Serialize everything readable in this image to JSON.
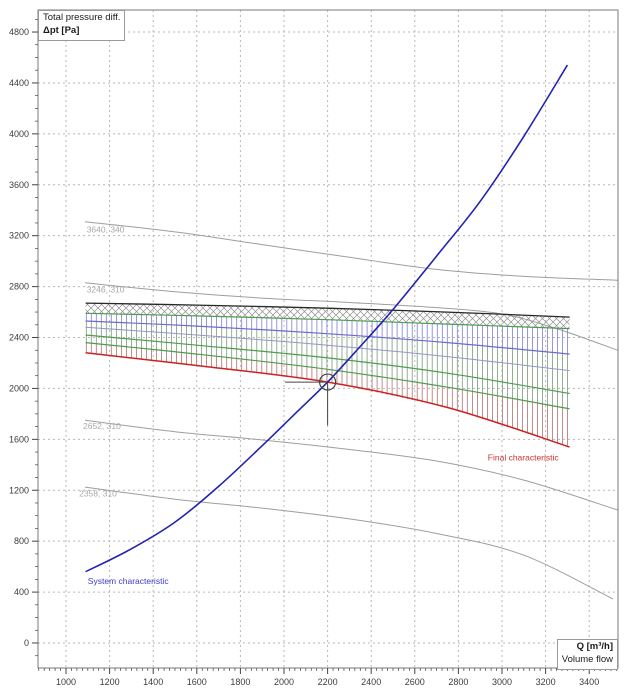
{
  "chart_data": {
    "type": "line",
    "title": "Total pressure diff.",
    "ylabel": "Δpt [Pa]",
    "xlabel": "Q [m³/h]",
    "xlabel2": "Volume flow",
    "x_axis": {
      "ticks": [
        1000,
        1200,
        1400,
        1600,
        1800,
        2000,
        2200,
        2400,
        2600,
        2800,
        3000,
        3200,
        3400
      ],
      "minor_step": 25,
      "minor_range": [
        875,
        3525
      ]
    },
    "y_axis": {
      "ticks": [
        0,
        400,
        800,
        1200,
        1600,
        2000,
        2400,
        2800,
        3200,
        3600,
        4000,
        4400,
        4800
      ],
      "minor_step": 100,
      "minor_range": [
        -100,
        4900
      ]
    },
    "grid": {
      "color": "#b7b7b7",
      "dash": "2 3"
    },
    "frame_color": "#7a7a7a",
    "tick_color": "#444444",
    "tick_label_color": "#3c3c3c",
    "series": [
      {
        "name": "speed-curve-3640-340",
        "label": "3640, 340",
        "color": "#9e9e9e",
        "width": 1,
        "points": [
          [
            1087,
            3310
          ],
          [
            1500,
            3230
          ],
          [
            1900,
            3130
          ],
          [
            2300,
            3030
          ],
          [
            2700,
            2935
          ],
          [
            3100,
            2880
          ],
          [
            3530,
            2850
          ]
        ]
      },
      {
        "name": "speed-curve-3246-310",
        "label": "3246, 310",
        "color": "#9e9e9e",
        "width": 1,
        "points": [
          [
            1087,
            2830
          ],
          [
            1500,
            2760
          ],
          [
            1900,
            2710
          ],
          [
            2300,
            2675
          ],
          [
            2700,
            2635
          ],
          [
            3000,
            2585
          ],
          [
            3250,
            2470
          ],
          [
            3530,
            2300
          ]
        ]
      },
      {
        "name": "speed-curve-2652-310",
        "label": "2652, 310",
        "color": "#9e9e9e",
        "width": 1,
        "points": [
          [
            1087,
            1750
          ],
          [
            1500,
            1660
          ],
          [
            1900,
            1595
          ],
          [
            2300,
            1520
          ],
          [
            2700,
            1430
          ],
          [
            3100,
            1280
          ],
          [
            3530,
            1045
          ]
        ]
      },
      {
        "name": "speed-curve-2358-310",
        "label": "2358, 310",
        "color": "#9e9e9e",
        "width": 1,
        "points": [
          [
            1087,
            1225
          ],
          [
            1500,
            1130
          ],
          [
            1900,
            1060
          ],
          [
            2300,
            975
          ],
          [
            2700,
            860
          ],
          [
            3100,
            690
          ],
          [
            3510,
            345
          ]
        ]
      },
      {
        "name": "band-top",
        "color": "#282828",
        "width": 1.3,
        "points": [
          [
            1090,
            2670
          ],
          [
            1600,
            2655
          ],
          [
            2200,
            2630
          ],
          [
            2750,
            2600
          ],
          [
            3310,
            2560
          ]
        ]
      },
      {
        "name": "band-green-1",
        "color": "#4e9b4e",
        "width": 1.2,
        "points": [
          [
            1090,
            2590
          ],
          [
            1600,
            2570
          ],
          [
            2200,
            2540
          ],
          [
            2750,
            2505
          ],
          [
            3310,
            2470
          ]
        ]
      },
      {
        "name": "band-blue-1",
        "color": "#6b6bcf",
        "width": 1.2,
        "points": [
          [
            1090,
            2530
          ],
          [
            1600,
            2490
          ],
          [
            2200,
            2430
          ],
          [
            2750,
            2360
          ],
          [
            3310,
            2270
          ]
        ]
      },
      {
        "name": "band-blue-2",
        "color": "#9595c8",
        "width": 1,
        "points": [
          [
            1090,
            2480
          ],
          [
            1600,
            2420
          ],
          [
            2200,
            2340
          ],
          [
            2750,
            2250
          ],
          [
            3310,
            2140
          ]
        ]
      },
      {
        "name": "band-green-2",
        "color": "#4e9b4e",
        "width": 1.2,
        "points": [
          [
            1090,
            2420
          ],
          [
            1600,
            2340
          ],
          [
            2200,
            2240
          ],
          [
            2750,
            2120
          ],
          [
            3310,
            1960
          ]
        ]
      },
      {
        "name": "band-green-3",
        "color": "#4e9b4e",
        "width": 1.2,
        "points": [
          [
            1090,
            2360
          ],
          [
            1600,
            2270
          ],
          [
            2200,
            2150
          ],
          [
            2750,
            2010
          ],
          [
            3310,
            1840
          ]
        ]
      },
      {
        "name": "final-characteristic",
        "label": "Final characteristic",
        "color": "#cc2222",
        "width": 1.5,
        "points": [
          [
            1090,
            2280
          ],
          [
            1600,
            2180
          ],
          [
            2200,
            2050
          ],
          [
            2750,
            1850
          ],
          [
            3310,
            1540
          ]
        ]
      },
      {
        "name": "system-characteristic",
        "label": "System characteristic",
        "color": "#2323b0",
        "width": 1.6,
        "points": [
          [
            1090,
            560
          ],
          [
            1300,
            740
          ],
          [
            1500,
            950
          ],
          [
            1700,
            1230
          ],
          [
            1900,
            1550
          ],
          [
            2050,
            1800
          ],
          [
            2200,
            2050
          ],
          [
            2350,
            2330
          ],
          [
            2500,
            2620
          ],
          [
            2700,
            3040
          ],
          [
            2900,
            3470
          ],
          [
            3100,
            3980
          ],
          [
            3300,
            4540
          ]
        ]
      }
    ],
    "hatch": {
      "cross": {
        "between": [
          "band-top",
          "band-green-1"
        ],
        "color": "#8f8f8f"
      },
      "vertical": {
        "step_q": 23,
        "q_range": [
          1093,
          3308
        ],
        "bands": [
          {
            "top": "band-green-1",
            "bottom": "band-blue-1",
            "color": "#7d7dd8"
          },
          {
            "top": "band-blue-1",
            "bottom": "band-green-3",
            "color": "#7a9a7a"
          },
          {
            "top": "band-green-3",
            "bottom": "final-characteristic",
            "color": "#b07070"
          }
        ]
      }
    },
    "operating_point": {
      "q": 2200,
      "dpt": 2050,
      "color": "#444444",
      "crosshair_left_q": 2005,
      "crosshair_down_dpt": 1710
    },
    "annotations": [
      {
        "name": "curve-label-3640-340",
        "text": "3640, 340",
        "q": 1095,
        "pa": 3225,
        "color": "#a8a8a8",
        "size": 8.5
      },
      {
        "name": "curve-label-3246-310",
        "text": "3246, 310",
        "q": 1095,
        "pa": 2752,
        "color": "#a8a8a8",
        "size": 8.5
      },
      {
        "name": "curve-label-2652-310",
        "text": "2652, 310",
        "q": 1078,
        "pa": 1680,
        "color": "#a8a8a8",
        "size": 8.5
      },
      {
        "name": "curve-label-2358-310",
        "text": "2358, 310",
        "q": 1060,
        "pa": 1150,
        "color": "#a8a8a8",
        "size": 8.5
      },
      {
        "name": "system-characteristic-label",
        "text": "System characteristic",
        "q": 1100,
        "pa": 462,
        "color": "#3a3ac8",
        "size": 8.5
      },
      {
        "name": "final-characteristic-label",
        "text": "Final characteristic",
        "q": 2935,
        "pa": 1432,
        "color": "#cc3333",
        "size": 8.5
      }
    ]
  }
}
